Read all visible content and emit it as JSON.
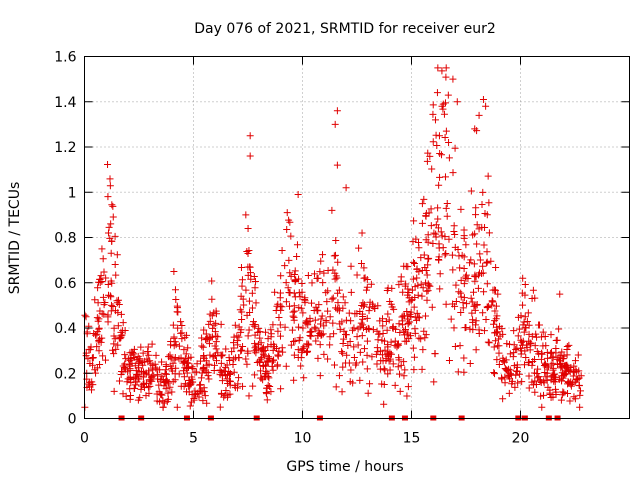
{
  "chart_data": {
    "type": "scatter",
    "title": "Day 076 of 2021, SRMTID for receiver eur2",
    "xlabel": "GPS time / hours",
    "ylabel": "SRMTID / TECUs",
    "xlim": [
      0,
      25
    ],
    "ylim": [
      0,
      1.6
    ],
    "x_ticks": [
      0,
      5,
      10,
      15,
      20
    ],
    "y_ticks": [
      0,
      0.2,
      0.4,
      0.6,
      0.8,
      1,
      1.2,
      1.4,
      1.6
    ],
    "x_tick_labels": [
      "0",
      "5",
      "10",
      "15",
      "20"
    ],
    "y_tick_labels": [
      "0",
      "0.2",
      "0.4",
      "0.6",
      "0.8",
      "1",
      "1.2",
      "1.4",
      "1.6"
    ],
    "grid": true,
    "point_color": "#e00000",
    "marker": "plus",
    "data_end_hour": 22.8,
    "zero_markers_x": [
      1.7,
      2.6,
      4.7,
      5.8,
      7.9,
      10.8,
      14.1,
      14.7,
      16.0,
      17.3,
      19.9,
      20.2,
      21.3,
      21.7
    ],
    "series_envelope": [
      {
        "x": 0.0,
        "y": 0.33
      },
      {
        "x": 0.3,
        "y": 0.23
      },
      {
        "x": 0.6,
        "y": 0.35
      },
      {
        "x": 0.9,
        "y": 0.5
      },
      {
        "x": 1.1,
        "y": 0.62
      },
      {
        "x": 1.3,
        "y": 0.58
      },
      {
        "x": 1.5,
        "y": 0.45
      },
      {
        "x": 1.8,
        "y": 0.27
      },
      {
        "x": 2.2,
        "y": 0.2
      },
      {
        "x": 2.6,
        "y": 0.2
      },
      {
        "x": 3.0,
        "y": 0.21
      },
      {
        "x": 3.5,
        "y": 0.15
      },
      {
        "x": 3.9,
        "y": 0.16
      },
      {
        "x": 4.2,
        "y": 0.4
      },
      {
        "x": 4.5,
        "y": 0.32
      },
      {
        "x": 4.9,
        "y": 0.14
      },
      {
        "x": 5.3,
        "y": 0.17
      },
      {
        "x": 5.7,
        "y": 0.3
      },
      {
        "x": 6.0,
        "y": 0.38
      },
      {
        "x": 6.3,
        "y": 0.2
      },
      {
        "x": 6.7,
        "y": 0.18
      },
      {
        "x": 7.1,
        "y": 0.28
      },
      {
        "x": 7.4,
        "y": 0.55
      },
      {
        "x": 7.7,
        "y": 0.4
      },
      {
        "x": 8.1,
        "y": 0.25
      },
      {
        "x": 8.5,
        "y": 0.22
      },
      {
        "x": 8.9,
        "y": 0.38
      },
      {
        "x": 9.3,
        "y": 0.62
      },
      {
        "x": 9.6,
        "y": 0.5
      },
      {
        "x": 10.0,
        "y": 0.4
      },
      {
        "x": 10.4,
        "y": 0.42
      },
      {
        "x": 10.8,
        "y": 0.45
      },
      {
        "x": 11.2,
        "y": 0.55
      },
      {
        "x": 11.6,
        "y": 0.45
      },
      {
        "x": 12.0,
        "y": 0.38
      },
      {
        "x": 12.4,
        "y": 0.36
      },
      {
        "x": 12.8,
        "y": 0.45
      },
      {
        "x": 13.2,
        "y": 0.35
      },
      {
        "x": 13.6,
        "y": 0.3
      },
      {
        "x": 14.0,
        "y": 0.32
      },
      {
        "x": 14.4,
        "y": 0.33
      },
      {
        "x": 14.8,
        "y": 0.4
      },
      {
        "x": 15.2,
        "y": 0.5
      },
      {
        "x": 15.6,
        "y": 0.6
      },
      {
        "x": 16.0,
        "y": 0.9
      },
      {
        "x": 16.4,
        "y": 0.95
      },
      {
        "x": 16.8,
        "y": 0.85
      },
      {
        "x": 17.2,
        "y": 0.55
      },
      {
        "x": 17.6,
        "y": 0.5
      },
      {
        "x": 18.0,
        "y": 0.7
      },
      {
        "x": 18.4,
        "y": 0.75
      },
      {
        "x": 18.7,
        "y": 0.45
      },
      {
        "x": 19.0,
        "y": 0.3
      },
      {
        "x": 19.4,
        "y": 0.22
      },
      {
        "x": 19.8,
        "y": 0.25
      },
      {
        "x": 20.2,
        "y": 0.33
      },
      {
        "x": 20.6,
        "y": 0.3
      },
      {
        "x": 21.0,
        "y": 0.22
      },
      {
        "x": 21.4,
        "y": 0.2
      },
      {
        "x": 21.8,
        "y": 0.22
      },
      {
        "x": 22.2,
        "y": 0.18
      },
      {
        "x": 22.8,
        "y": 0.15
      }
    ],
    "notable_points": [
      {
        "x": 7.6,
        "y": 1.25
      },
      {
        "x": 7.6,
        "y": 1.16
      },
      {
        "x": 9.8,
        "y": 0.99
      },
      {
        "x": 11.6,
        "y": 1.36
      },
      {
        "x": 11.5,
        "y": 1.3
      },
      {
        "x": 11.6,
        "y": 1.12
      },
      {
        "x": 12.0,
        "y": 1.02
      },
      {
        "x": 16.4,
        "y": 1.38
      },
      {
        "x": 16.9,
        "y": 1.5
      },
      {
        "x": 17.1,
        "y": 1.4
      },
      {
        "x": 18.1,
        "y": 1.34
      },
      {
        "x": 18.3,
        "y": 1.41
      },
      {
        "x": 18.4,
        "y": 1.38
      },
      {
        "x": 16.1,
        "y": 1.32
      },
      {
        "x": 16.6,
        "y": 1.27
      },
      {
        "x": 1.2,
        "y": 0.86
      },
      {
        "x": 1.1,
        "y": 0.82
      },
      {
        "x": 0.8,
        "y": 0.75
      },
      {
        "x": 9.3,
        "y": 0.91
      },
      {
        "x": 7.4,
        "y": 0.9
      },
      {
        "x": 4.1,
        "y": 0.65
      },
      {
        "x": 21.8,
        "y": 0.55
      },
      {
        "x": 20.1,
        "y": 0.62
      },
      {
        "x": 15.5,
        "y": 0.95
      },
      {
        "x": 16.7,
        "y": 1.22
      },
      {
        "x": 17.9,
        "y": 1.28
      }
    ],
    "generated_points_count": 1500
  }
}
